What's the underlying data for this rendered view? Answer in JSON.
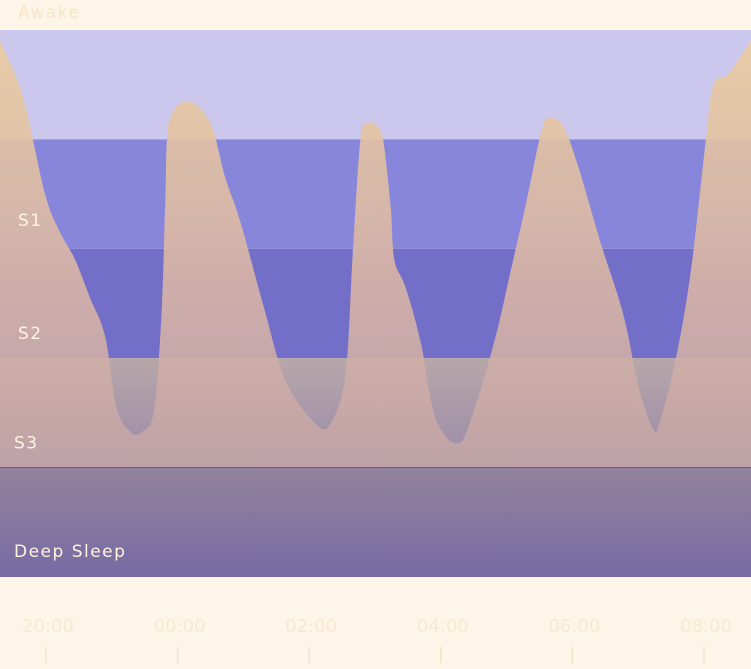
{
  "chart_data": {
    "type": "area",
    "title": "",
    "xlabel": "",
    "ylabel": "",
    "stages": [
      "Awake",
      "S1",
      "S2",
      "S3",
      "Deep Sleep"
    ],
    "x_ticks": [
      "20:00",
      "00:00",
      "02:00",
      "04:00",
      "06:00",
      "08:00"
    ],
    "ylim": [
      0,
      4
    ],
    "series": [
      {
        "values": [
          [
            0.0,
            0.1
          ],
          [
            0.03,
            0.6
          ],
          [
            0.06,
            1.5
          ],
          [
            0.08,
            1.85
          ],
          [
            0.1,
            2.1
          ],
          [
            0.12,
            2.45
          ],
          [
            0.14,
            2.8
          ],
          [
            0.155,
            3.45
          ],
          [
            0.175,
            3.68
          ],
          [
            0.19,
            3.67
          ],
          [
            0.205,
            3.48
          ],
          [
            0.215,
            2.6
          ],
          [
            0.22,
            1.6
          ],
          [
            0.225,
            0.85
          ],
          [
            0.25,
            0.65
          ],
          [
            0.28,
            0.85
          ],
          [
            0.3,
            1.35
          ],
          [
            0.32,
            1.75
          ],
          [
            0.35,
            2.5
          ],
          [
            0.38,
            3.2
          ],
          [
            0.42,
            3.6
          ],
          [
            0.44,
            3.6
          ],
          [
            0.46,
            3.15
          ],
          [
            0.47,
            2.0
          ],
          [
            0.48,
            1.0
          ],
          [
            0.49,
            0.85
          ],
          [
            0.5,
            0.87
          ],
          [
            0.51,
            1.0
          ],
          [
            0.52,
            1.6
          ],
          [
            0.525,
            2.1
          ],
          [
            0.54,
            2.35
          ],
          [
            0.56,
            2.85
          ],
          [
            0.58,
            3.55
          ],
          [
            0.61,
            3.78
          ],
          [
            0.63,
            3.5
          ],
          [
            0.66,
            2.8
          ],
          [
            0.68,
            2.2
          ],
          [
            0.7,
            1.6
          ],
          [
            0.72,
            0.95
          ],
          [
            0.73,
            0.8
          ],
          [
            0.75,
            0.88
          ],
          [
            0.77,
            1.25
          ],
          [
            0.8,
            1.95
          ],
          [
            0.83,
            2.6
          ],
          [
            0.85,
            3.25
          ],
          [
            0.87,
            3.65
          ],
          [
            0.88,
            3.55
          ],
          [
            0.9,
            3.0
          ],
          [
            0.92,
            2.2
          ],
          [
            0.94,
            1.0
          ],
          [
            0.95,
            0.5
          ],
          [
            0.97,
            0.4
          ],
          [
            1.0,
            0.1
          ]
        ]
      }
    ],
    "colors": {
      "page_bg": "#fdf5e8",
      "awake_band": "#cbc7ed",
      "s1_band": "#8886db",
      "s2_band": "#736fc9",
      "s3_band": "#b3a4ab",
      "deep_band": "#7a6fa6",
      "sleep_fill": "#ebcc9f",
      "label_text": "#fff4df",
      "tick_text": "#f5e9cf"
    }
  }
}
